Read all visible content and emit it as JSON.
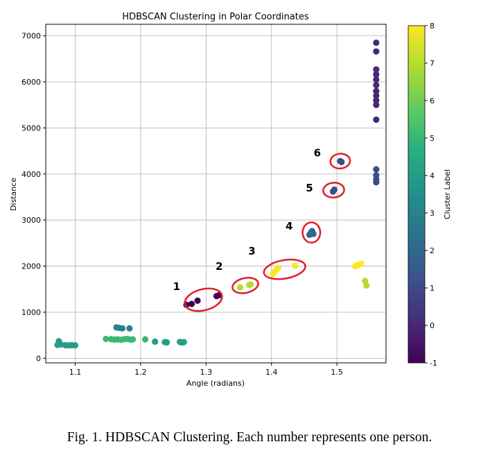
{
  "chart_data": {
    "type": "scatter",
    "title": "HDBSCAN Clustering in Polar Coordinates",
    "xlabel": "Angle (radians)",
    "ylabel": "Distance",
    "xlim": [
      1.055,
      1.575
    ],
    "ylim": [
      -100,
      7250
    ],
    "xticks": [
      "1.1",
      "1.2",
      "1.3",
      "1.4",
      "1.5"
    ],
    "xtick_values": [
      1.1,
      1.2,
      1.3,
      1.4,
      1.5
    ],
    "yticks": [
      "0",
      "1000",
      "2000",
      "3000",
      "4000",
      "5000",
      "6000",
      "7000"
    ],
    "ytick_values": [
      0,
      1000,
      2000,
      3000,
      4000,
      5000,
      6000,
      7000
    ],
    "grid": true,
    "colorbar": {
      "label": "Cluster Label",
      "min": -1,
      "max": 8,
      "ticks": [
        "-1",
        "0",
        "1",
        "2",
        "3",
        "4",
        "5",
        "6",
        "7",
        "8"
      ],
      "tick_values": [
        -1,
        0,
        1,
        2,
        3,
        4,
        5,
        6,
        7,
        8
      ]
    },
    "points": [
      {
        "x": 1.073,
        "y": 290,
        "label": 4
      },
      {
        "x": 1.075,
        "y": 370,
        "label": 4
      },
      {
        "x": 1.078,
        "y": 300,
        "label": 4
      },
      {
        "x": 1.085,
        "y": 285,
        "label": 4
      },
      {
        "x": 1.09,
        "y": 280,
        "label": 4
      },
      {
        "x": 1.095,
        "y": 285,
        "label": 4
      },
      {
        "x": 1.1,
        "y": 280,
        "label": 4
      },
      {
        "x": 1.163,
        "y": 670,
        "label": 3
      },
      {
        "x": 1.167,
        "y": 660,
        "label": 3
      },
      {
        "x": 1.172,
        "y": 650,
        "label": 3
      },
      {
        "x": 1.183,
        "y": 650,
        "label": 3
      },
      {
        "x": 1.147,
        "y": 420,
        "label": 5
      },
      {
        "x": 1.155,
        "y": 415,
        "label": 5
      },
      {
        "x": 1.16,
        "y": 405,
        "label": 5
      },
      {
        "x": 1.165,
        "y": 410,
        "label": 5
      },
      {
        "x": 1.17,
        "y": 400,
        "label": 5
      },
      {
        "x": 1.175,
        "y": 415,
        "label": 5
      },
      {
        "x": 1.18,
        "y": 420,
        "label": 5
      },
      {
        "x": 1.185,
        "y": 405,
        "label": 5
      },
      {
        "x": 1.188,
        "y": 410,
        "label": 5
      },
      {
        "x": 1.207,
        "y": 410,
        "label": 5
      },
      {
        "x": 1.222,
        "y": 360,
        "label": 4
      },
      {
        "x": 1.237,
        "y": 350,
        "label": 4
      },
      {
        "x": 1.24,
        "y": 345,
        "label": 4
      },
      {
        "x": 1.26,
        "y": 355,
        "label": 4
      },
      {
        "x": 1.263,
        "y": 345,
        "label": 4
      },
      {
        "x": 1.266,
        "y": 350,
        "label": 4
      },
      {
        "x": 1.27,
        "y": 1160,
        "label": -1
      },
      {
        "x": 1.278,
        "y": 1180,
        "label": -1
      },
      {
        "x": 1.287,
        "y": 1250,
        "label": -1
      },
      {
        "x": 1.316,
        "y": 1350,
        "label": -1
      },
      {
        "x": 1.32,
        "y": 1370,
        "label": -1
      },
      {
        "x": 1.352,
        "y": 1540,
        "label": 7
      },
      {
        "x": 1.366,
        "y": 1590,
        "label": 7
      },
      {
        "x": 1.368,
        "y": 1600,
        "label": 7
      },
      {
        "x": 1.402,
        "y": 1830,
        "label": 8
      },
      {
        "x": 1.405,
        "y": 1880,
        "label": 8
      },
      {
        "x": 1.407,
        "y": 1920,
        "label": 8
      },
      {
        "x": 1.41,
        "y": 1960,
        "label": 8
      },
      {
        "x": 1.436,
        "y": 2010,
        "label": 8
      },
      {
        "x": 1.458,
        "y": 2680,
        "label": 2
      },
      {
        "x": 1.46,
        "y": 2720,
        "label": 2
      },
      {
        "x": 1.462,
        "y": 2760,
        "label": 2
      },
      {
        "x": 1.464,
        "y": 2700,
        "label": 2
      },
      {
        "x": 1.494,
        "y": 3620,
        "label": 1
      },
      {
        "x": 1.496,
        "y": 3660,
        "label": 1
      },
      {
        "x": 1.505,
        "y": 4280,
        "label": 1
      },
      {
        "x": 1.507,
        "y": 4260,
        "label": 1
      },
      {
        "x": 1.528,
        "y": 2000,
        "label": 8
      },
      {
        "x": 1.532,
        "y": 2020,
        "label": 8
      },
      {
        "x": 1.537,
        "y": 2050,
        "label": 8
      },
      {
        "x": 1.543,
        "y": 1680,
        "label": 7
      },
      {
        "x": 1.545,
        "y": 1580,
        "label": 7
      },
      {
        "x": 1.56,
        "y": 6850,
        "label": 0
      },
      {
        "x": 1.56,
        "y": 6660,
        "label": 0
      },
      {
        "x": 1.56,
        "y": 6270,
        "label": 0
      },
      {
        "x": 1.56,
        "y": 6160,
        "label": 0
      },
      {
        "x": 1.56,
        "y": 6050,
        "label": 0
      },
      {
        "x": 1.56,
        "y": 5930,
        "label": 0
      },
      {
        "x": 1.56,
        "y": 5800,
        "label": 0
      },
      {
        "x": 1.56,
        "y": 5700,
        "label": 0
      },
      {
        "x": 1.56,
        "y": 5600,
        "label": 0
      },
      {
        "x": 1.56,
        "y": 5500,
        "label": 0
      },
      {
        "x": 1.56,
        "y": 5180,
        "label": 0
      },
      {
        "x": 1.56,
        "y": 4100,
        "label": 1
      },
      {
        "x": 1.56,
        "y": 3970,
        "label": 1
      },
      {
        "x": 1.56,
        "y": 3880,
        "label": 1
      },
      {
        "x": 1.56,
        "y": 3820,
        "label": 1
      }
    ],
    "annotations": [
      {
        "text": "1",
        "cx": 1.296,
        "cy": 1270,
        "rx": 0.029,
        "ry": 230,
        "rot": -14,
        "tx": 1.255,
        "ty": 1480
      },
      {
        "text": "2",
        "cx": 1.36,
        "cy": 1580,
        "rx": 0.02,
        "ry": 160,
        "rot": -12,
        "tx": 1.32,
        "ty": 1920
      },
      {
        "text": "3",
        "cx": 1.42,
        "cy": 1930,
        "rx": 0.032,
        "ry": 200,
        "rot": -10,
        "tx": 1.37,
        "ty": 2250
      },
      {
        "text": "4",
        "cx": 1.461,
        "cy": 2730,
        "rx": 0.0135,
        "ry": 220,
        "rot": 0,
        "tx": 1.427,
        "ty": 2790
      },
      {
        "text": "5",
        "cx": 1.495,
        "cy": 3650,
        "rx": 0.016,
        "ry": 160,
        "rot": -5,
        "tx": 1.458,
        "ty": 3620
      },
      {
        "text": "6",
        "cx": 1.505,
        "cy": 4280,
        "rx": 0.015,
        "ry": 160,
        "rot": -5,
        "tx": 1.47,
        "ty": 4380
      }
    ]
  },
  "caption": "Fig. 1.  HDBSCAN Clustering. Each number represents one person."
}
